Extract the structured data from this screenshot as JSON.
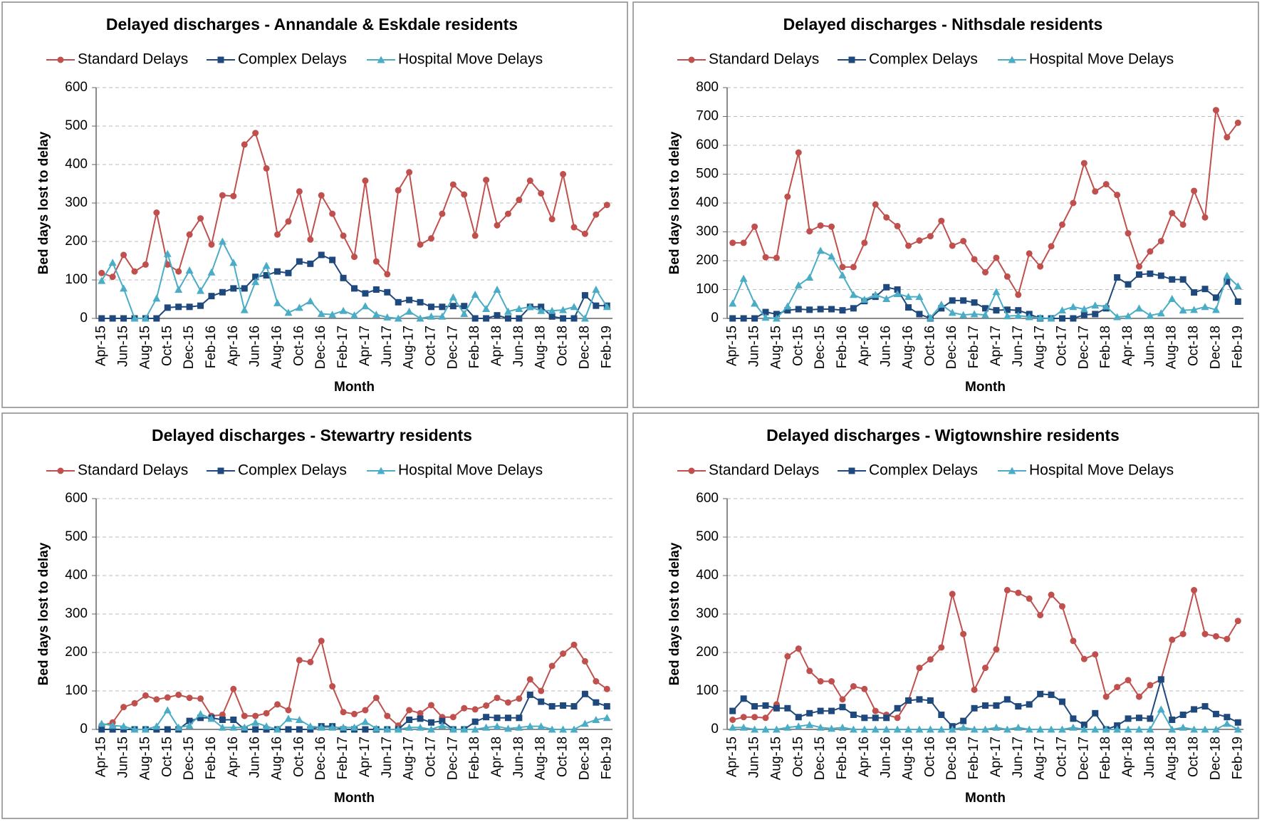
{
  "chart_data": [
    {
      "type": "line",
      "title": "Delayed discharges - Annandale & Eskdale residents",
      "x_label": "Month",
      "y_label": "Bed days lost to delay",
      "categories": [
        "Apr-15",
        null,
        "Jun-15",
        null,
        "Aug-15",
        null,
        "Oct-15",
        null,
        "Dec-15",
        null,
        "Feb-16",
        null,
        "Apr-16",
        null,
        "Jun-16",
        null,
        "Aug-16",
        null,
        "Oct-16",
        null,
        "Dec-16",
        null,
        "Feb-17",
        null,
        "Apr-17",
        null,
        "Jun-17",
        null,
        "Aug-17",
        null,
        "Oct-17",
        null,
        "Dec-17",
        null,
        "Feb-18",
        null,
        "Apr-18",
        null,
        "Jun-18",
        null,
        "Aug-18",
        null,
        "Oct-18",
        null,
        "Dec-18",
        null,
        "Feb-19"
      ],
      "ylim": [
        0,
        600
      ],
      "yticks": [
        0,
        100,
        200,
        300,
        400,
        500,
        600
      ],
      "grid": true,
      "series": [
        {
          "name": "Standard Delays",
          "color": "#c0504d",
          "marker": "circle",
          "values": [
            118,
            108,
            165,
            122,
            140,
            275,
            140,
            122,
            218,
            260,
            192,
            320,
            318,
            452,
            482,
            390,
            218,
            252,
            330,
            205,
            320,
            272,
            215,
            160,
            358,
            148,
            115,
            333,
            380,
            192,
            208,
            272,
            348,
            322,
            215,
            360,
            242,
            272,
            308,
            358,
            325,
            258,
            375,
            237,
            220,
            270,
            295
          ]
        },
        {
          "name": "Complex Delays",
          "color": "#1f497d",
          "marker": "square",
          "values": [
            0,
            0,
            0,
            0,
            0,
            0,
            28,
            30,
            30,
            33,
            58,
            68,
            78,
            78,
            108,
            112,
            122,
            118,
            148,
            142,
            165,
            152,
            105,
            78,
            65,
            75,
            68,
            42,
            48,
            42,
            30,
            30,
            32,
            32,
            0,
            0,
            8,
            0,
            0,
            30,
            30,
            5,
            0,
            0,
            60,
            33,
            33
          ]
        },
        {
          "name": "Hospital Move Delays",
          "color": "#4bacc6",
          "marker": "triangle",
          "values": [
            98,
            145,
            78,
            0,
            0,
            52,
            168,
            75,
            125,
            72,
            120,
            200,
            145,
            22,
            95,
            137,
            40,
            15,
            28,
            45,
            12,
            10,
            20,
            8,
            32,
            10,
            3,
            0,
            18,
            0,
            5,
            5,
            55,
            12,
            62,
            25,
            75,
            18,
            25,
            30,
            20,
            20,
            22,
            30,
            0,
            75,
            30
          ]
        }
      ]
    },
    {
      "type": "line",
      "title": "Delayed discharges - Nithsdale residents",
      "x_label": "Month",
      "y_label": "Bed days lost to delay",
      "categories": [
        "Apr-15",
        null,
        "Jun-15",
        null,
        "Aug-15",
        null,
        "Oct-15",
        null,
        "Dec-15",
        null,
        "Feb-16",
        null,
        "Apr-16",
        null,
        "Jun-16",
        null,
        "Aug-16",
        null,
        "Oct-16",
        null,
        "Dec-16",
        null,
        "Feb-17",
        null,
        "Apr-17",
        null,
        "Jun-17",
        null,
        "Aug-17",
        null,
        "Oct-17",
        null,
        "Dec-17",
        null,
        "Feb-18",
        null,
        "Apr-18",
        null,
        "Jun-18",
        null,
        "Aug-18",
        null,
        "Oct-18",
        null,
        "Dec-18",
        null,
        "Feb-19"
      ],
      "ylim": [
        0,
        800
      ],
      "yticks": [
        0,
        100,
        200,
        300,
        400,
        500,
        600,
        700,
        800
      ],
      "grid": true,
      "series": [
        {
          "name": "Standard Delays",
          "color": "#c0504d",
          "marker": "circle",
          "values": [
            262,
            262,
            318,
            212,
            210,
            422,
            575,
            302,
            322,
            318,
            178,
            178,
            262,
            395,
            350,
            320,
            252,
            270,
            285,
            338,
            252,
            268,
            205,
            160,
            210,
            145,
            82,
            225,
            180,
            250,
            325,
            400,
            538,
            440,
            465,
            428,
            295,
            180,
            232,
            268,
            365,
            325,
            442,
            350,
            722,
            628,
            678
          ]
        },
        {
          "name": "Complex Delays",
          "color": "#1f497d",
          "marker": "square",
          "values": [
            0,
            0,
            0,
            22,
            15,
            28,
            32,
            30,
            32,
            32,
            28,
            35,
            60,
            75,
            108,
            100,
            38,
            15,
            0,
            35,
            62,
            62,
            55,
            35,
            28,
            30,
            28,
            15,
            0,
            0,
            0,
            0,
            12,
            15,
            35,
            142,
            118,
            152,
            155,
            148,
            135,
            135,
            90,
            102,
            72,
            128,
            58
          ]
        },
        {
          "name": "Hospital Move Delays",
          "color": "#4bacc6",
          "marker": "triangle",
          "values": [
            52,
            138,
            52,
            3,
            0,
            42,
            115,
            142,
            235,
            215,
            150,
            82,
            65,
            82,
            68,
            85,
            75,
            75,
            2,
            48,
            20,
            12,
            15,
            12,
            92,
            8,
            10,
            5,
            2,
            0,
            28,
            40,
            32,
            45,
            42,
            5,
            8,
            35,
            10,
            18,
            68,
            28,
            30,
            40,
            30,
            148,
            112
          ]
        }
      ]
    },
    {
      "type": "line",
      "title": "Delayed discharges - Stewartry residents",
      "x_label": "Month",
      "y_label": "Bed days lost to delay",
      "categories": [
        "Apr-15",
        null,
        "Jun-15",
        null,
        "Aug-15",
        null,
        "Oct-15",
        null,
        "Dec-15",
        null,
        "Feb-16",
        null,
        "Apr-16",
        null,
        "Jun-16",
        null,
        "Aug-16",
        null,
        "Oct-16",
        null,
        "Dec-16",
        null,
        "Feb-17",
        null,
        "Apr-17",
        null,
        "Jun-17",
        null,
        "Aug-17",
        null,
        "Oct-17",
        null,
        "Dec-17",
        null,
        "Feb-18",
        null,
        "Apr-18",
        null,
        "Jun-18",
        null,
        "Aug-18",
        null,
        "Oct-18",
        null,
        "Dec-18",
        null,
        "Feb-19"
      ],
      "ylim": [
        0,
        600
      ],
      "yticks": [
        0,
        100,
        200,
        300,
        400,
        500,
        600
      ],
      "grid": true,
      "series": [
        {
          "name": "Standard Delays",
          "color": "#c0504d",
          "marker": "circle",
          "values": [
            10,
            18,
            58,
            68,
            88,
            78,
            83,
            90,
            82,
            80,
            35,
            38,
            105,
            35,
            35,
            42,
            65,
            50,
            180,
            175,
            230,
            112,
            45,
            40,
            50,
            82,
            35,
            10,
            50,
            42,
            63,
            32,
            32,
            55,
            52,
            62,
            82,
            70,
            80,
            130,
            100,
            165,
            197,
            220,
            177,
            125,
            105
          ]
        },
        {
          "name": "Complex Delays",
          "color": "#1f497d",
          "marker": "square",
          "values": [
            0,
            0,
            0,
            0,
            0,
            0,
            0,
            0,
            22,
            30,
            30,
            25,
            25,
            0,
            0,
            0,
            0,
            0,
            0,
            0,
            8,
            8,
            0,
            0,
            0,
            0,
            0,
            0,
            25,
            28,
            18,
            22,
            0,
            0,
            20,
            32,
            30,
            30,
            30,
            90,
            72,
            60,
            62,
            60,
            92,
            70,
            60
          ]
        },
        {
          "name": "Hospital Move Delays",
          "color": "#4bacc6",
          "marker": "triangle",
          "values": [
            15,
            10,
            8,
            0,
            0,
            8,
            50,
            5,
            10,
            40,
            28,
            5,
            5,
            5,
            18,
            8,
            0,
            28,
            25,
            8,
            5,
            5,
            5,
            5,
            20,
            2,
            0,
            0,
            5,
            5,
            0,
            10,
            0,
            0,
            0,
            5,
            8,
            2,
            5,
            8,
            8,
            0,
            0,
            0,
            15,
            25,
            30
          ]
        }
      ]
    },
    {
      "type": "line",
      "title": "Delayed discharges - Wigtownshire residents",
      "x_label": "Month",
      "y_label": "Bed days lost to delay",
      "categories": [
        "Apr-15",
        null,
        "Jun-15",
        null,
        "Aug-15",
        null,
        "Oct-15",
        null,
        "Dec-15",
        null,
        "Feb-16",
        null,
        "Apr-16",
        null,
        "Jun-16",
        null,
        "Aug-16",
        null,
        "Oct-16",
        null,
        "Dec-16",
        null,
        "Feb-17",
        null,
        "Apr-17",
        null,
        "Jun-17",
        null,
        "Aug-17",
        null,
        "Oct-17",
        null,
        "Dec-17",
        null,
        "Feb-18",
        null,
        "Apr-18",
        null,
        "Jun-18",
        null,
        "Aug-18",
        null,
        "Oct-18",
        null,
        "Dec-18",
        null,
        "Feb-19"
      ],
      "ylim": [
        0,
        600
      ],
      "yticks": [
        0,
        100,
        200,
        300,
        400,
        500,
        600
      ],
      "grid": true,
      "series": [
        {
          "name": "Standard Delays",
          "color": "#c0504d",
          "marker": "circle",
          "values": [
            25,
            32,
            32,
            30,
            65,
            190,
            210,
            152,
            125,
            125,
            78,
            112,
            105,
            48,
            38,
            30,
            75,
            160,
            182,
            213,
            352,
            248,
            103,
            160,
            208,
            362,
            355,
            340,
            297,
            350,
            320,
            230,
            183,
            195,
            85,
            110,
            128,
            85,
            115,
            130,
            233,
            248,
            362,
            248,
            242,
            235,
            282
          ]
        },
        {
          "name": "Complex Delays",
          "color": "#1f497d",
          "marker": "square",
          "values": [
            48,
            80,
            60,
            62,
            55,
            55,
            32,
            42,
            48,
            48,
            58,
            38,
            30,
            30,
            30,
            55,
            75,
            78,
            75,
            38,
            8,
            22,
            55,
            62,
            62,
            78,
            60,
            65,
            92,
            90,
            72,
            28,
            12,
            42,
            0,
            10,
            28,
            30,
            28,
            130,
            25,
            38,
            52,
            60,
            40,
            32,
            18
          ]
        },
        {
          "name": "Hospital Move Delays",
          "color": "#4bacc6",
          "marker": "triangle",
          "values": [
            5,
            5,
            0,
            0,
            0,
            5,
            8,
            12,
            5,
            2,
            5,
            0,
            0,
            0,
            0,
            0,
            0,
            0,
            0,
            0,
            0,
            5,
            0,
            0,
            5,
            0,
            5,
            0,
            0,
            0,
            0,
            5,
            0,
            0,
            0,
            0,
            0,
            0,
            0,
            52,
            0,
            5,
            0,
            0,
            0,
            15,
            0
          ]
        }
      ]
    }
  ]
}
